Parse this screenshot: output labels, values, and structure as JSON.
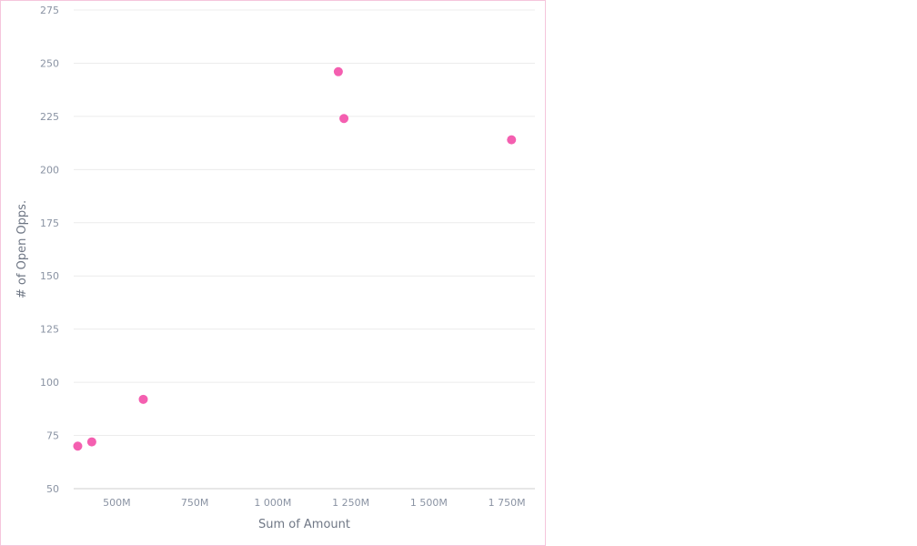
{
  "chart_data": {
    "type": "scatter",
    "title": "",
    "xlabel": "Sum of Amount",
    "ylabel": "# of Open Opps.",
    "xlim": [
      362,
      1840
    ],
    "ylim": [
      50,
      275
    ],
    "x_ticks": [
      500,
      750,
      1000,
      1250,
      1500,
      1750
    ],
    "x_tick_labels": [
      "500M",
      "750M",
      "1 000M",
      "1 250M",
      "1 500M",
      "1 750M"
    ],
    "y_ticks": [
      50,
      75,
      100,
      125,
      150,
      175,
      200,
      225,
      250,
      275
    ],
    "y_tick_labels": [
      "50",
      "75",
      "100",
      "125",
      "150",
      "175",
      "200",
      "225",
      "250",
      "275"
    ],
    "grid": "horizontal",
    "legend": "none",
    "point_color": "#f45fb0",
    "series": [
      {
        "points": [
          {
            "x": 375,
            "y": 70
          },
          {
            "x": 420,
            "y": 72
          },
          {
            "x": 585,
            "y": 92
          },
          {
            "x": 1210,
            "y": 246
          },
          {
            "x": 1228,
            "y": 224
          },
          {
            "x": 1765,
            "y": 214
          }
        ]
      }
    ]
  }
}
